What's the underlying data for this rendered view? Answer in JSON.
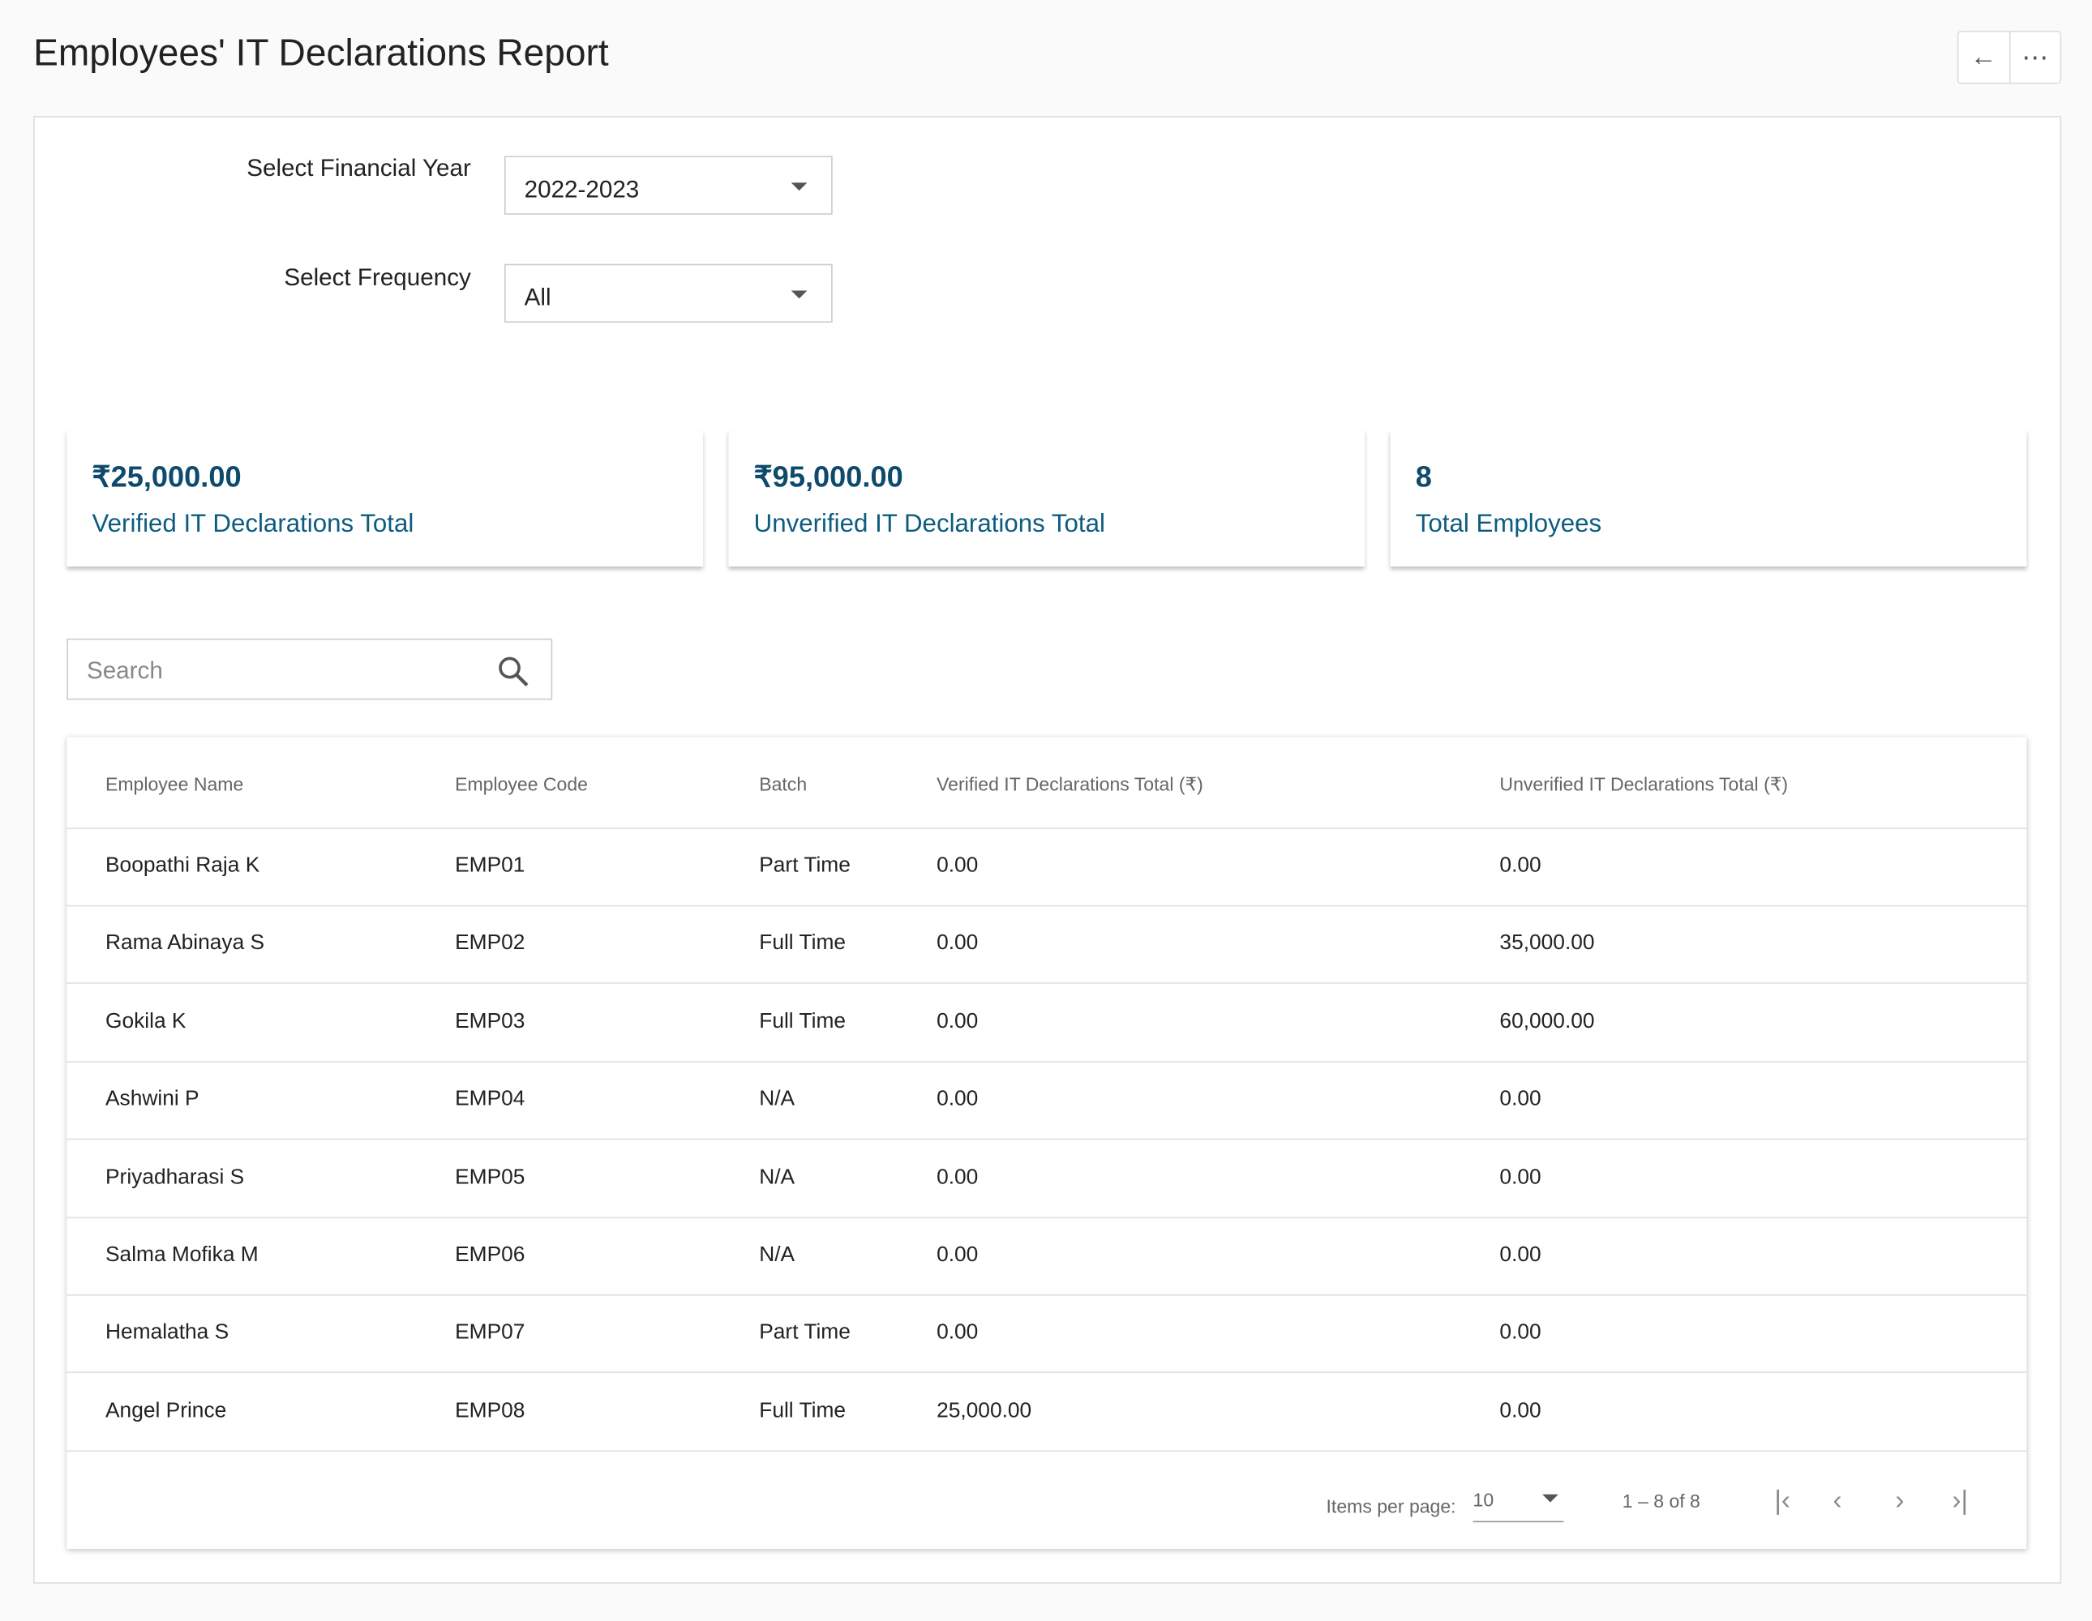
{
  "header": {
    "title": "Employees' IT Declarations Report"
  },
  "filters": [
    {
      "label": "Select Financial Year",
      "value": "2022-2023"
    },
    {
      "label": "Select Frequency",
      "value": "All"
    }
  ],
  "cards": [
    {
      "value": "₹25,000.00",
      "label": "Verified IT Declarations Total"
    },
    {
      "value": "₹95,000.00",
      "label": "Unverified IT Declarations Total"
    },
    {
      "value": "8",
      "label": "Total Employees"
    }
  ],
  "search": {
    "placeholder": "Search"
  },
  "table": {
    "columns": [
      "Employee Name",
      "Employee Code",
      "Batch",
      "Verified IT Declarations Total (₹)",
      "Unverified IT Declarations Total (₹)"
    ],
    "rows": [
      [
        "Boopathi Raja K",
        "EMP01",
        "Part Time",
        "0.00",
        "0.00"
      ],
      [
        "Rama Abinaya S",
        "EMP02",
        "Full Time",
        "0.00",
        "35,000.00"
      ],
      [
        "Gokila K",
        "EMP03",
        "Full Time",
        "0.00",
        "60,000.00"
      ],
      [
        "Ashwini P",
        "EMP04",
        "N/A",
        "0.00",
        "0.00"
      ],
      [
        "Priyadharasi S",
        "EMP05",
        "N/A",
        "0.00",
        "0.00"
      ],
      [
        "Salma Mofika M",
        "EMP06",
        "N/A",
        "0.00",
        "0.00"
      ],
      [
        "Hemalatha S",
        "EMP07",
        "Part Time",
        "0.00",
        "0.00"
      ],
      [
        "Angel Prince",
        "EMP08",
        "Full Time",
        "25,000.00",
        "0.00"
      ]
    ]
  },
  "pagination": {
    "items_per_page_label": "Items per page:",
    "items_per_page": "10",
    "range": "1 – 8 of 8"
  }
}
